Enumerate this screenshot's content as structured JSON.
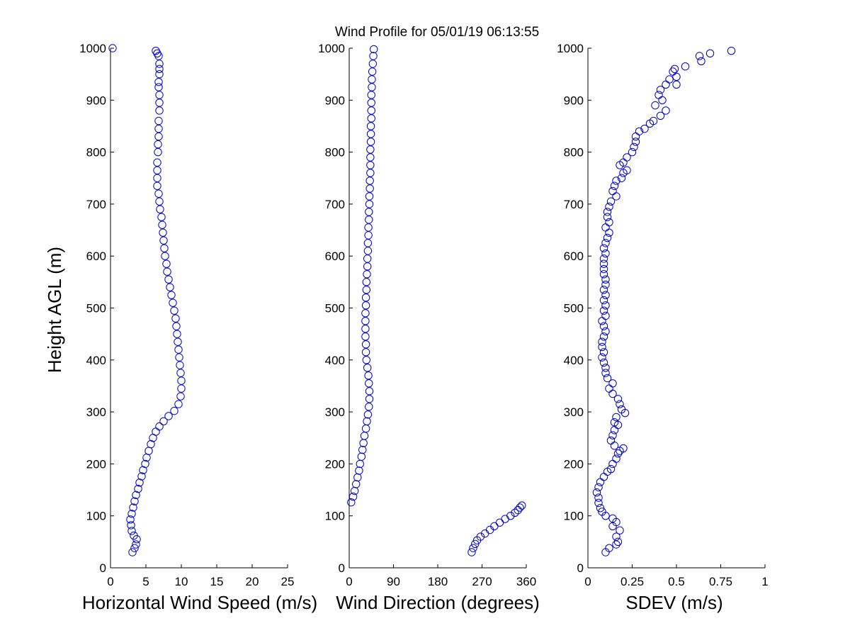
{
  "title": "Wind Profile for  05/01/19 06:13:55",
  "ylabel": "Height AGL (m)",
  "colors": {
    "marker": "#0000cc",
    "axis": "#000000",
    "background": "#ffffff"
  },
  "chart_data": [
    {
      "type": "scatter",
      "xlabel": "Horizontal Wind Speed (m/s)",
      "ylabel": "Height AGL (m)",
      "xlim": [
        0,
        25
      ],
      "ylim": [
        0,
        1000
      ],
      "xticks": [
        "0",
        "5",
        "10",
        "15",
        "20",
        "25"
      ],
      "yticks": [
        "0",
        "100",
        "200",
        "300",
        "400",
        "500",
        "600",
        "700",
        "800",
        "900",
        "1000"
      ],
      "profile_series": [
        [
          6.4,
          995
        ],
        [
          6.6,
          990
        ],
        [
          6.8,
          985
        ],
        [
          6.9,
          970
        ],
        [
          6.9,
          960
        ],
        [
          6.9,
          950
        ],
        [
          6.8,
          935
        ],
        [
          6.8,
          925
        ],
        [
          6.9,
          910
        ],
        [
          6.9,
          895
        ],
        [
          6.9,
          880
        ],
        [
          6.8,
          860
        ],
        [
          6.8,
          845
        ],
        [
          6.8,
          830
        ],
        [
          6.7,
          815
        ],
        [
          6.7,
          800
        ],
        [
          6.6,
          780
        ],
        [
          6.6,
          765
        ],
        [
          6.6,
          750
        ],
        [
          6.6,
          735
        ],
        [
          6.8,
          720
        ],
        [
          6.9,
          705
        ],
        [
          7.0,
          690
        ],
        [
          7.2,
          675
        ],
        [
          7.3,
          660
        ],
        [
          7.4,
          645
        ],
        [
          7.5,
          630
        ],
        [
          7.6,
          615
        ],
        [
          7.7,
          600
        ],
        [
          7.9,
          585
        ],
        [
          8.0,
          570
        ],
        [
          8.2,
          555
        ],
        [
          8.4,
          540
        ],
        [
          8.6,
          525
        ],
        [
          8.8,
          510
        ],
        [
          9.0,
          495
        ],
        [
          9.2,
          480
        ],
        [
          9.3,
          465
        ],
        [
          9.4,
          450
        ],
        [
          9.5,
          435
        ],
        [
          9.6,
          420
        ],
        [
          9.7,
          405
        ],
        [
          9.8,
          390
        ],
        [
          9.9,
          375
        ],
        [
          10.0,
          360
        ],
        [
          10.0,
          345
        ],
        [
          9.9,
          330
        ],
        [
          9.6,
          315
        ],
        [
          9.0,
          302
        ],
        [
          8.2,
          292
        ],
        [
          7.5,
          282
        ],
        [
          6.9,
          272
        ],
        [
          6.4,
          262
        ],
        [
          6.0,
          250
        ],
        [
          5.7,
          238
        ],
        [
          5.4,
          225
        ],
        [
          5.1,
          212
        ],
        [
          4.9,
          200
        ],
        [
          4.6,
          188
        ],
        [
          4.4,
          176
        ],
        [
          4.1,
          164
        ],
        [
          3.9,
          152
        ],
        [
          3.6,
          140
        ],
        [
          3.4,
          128
        ],
        [
          3.2,
          116
        ],
        [
          3.0,
          104
        ],
        [
          2.8,
          93
        ],
        [
          2.9,
          82
        ],
        [
          3.0,
          71
        ],
        [
          3.3,
          62
        ],
        [
          3.7,
          55
        ],
        [
          3.6,
          45
        ],
        [
          3.4,
          38
        ],
        [
          3.1,
          30
        ]
      ],
      "outliers": [
        [
          0.3,
          1000
        ]
      ]
    },
    {
      "type": "scatter",
      "xlabel": "Wind Direction (degrees)",
      "ylabel": "",
      "xlim": [
        0,
        360
      ],
      "ylim": [
        0,
        1000
      ],
      "xticks": [
        "0",
        "90",
        "180",
        "270",
        "360"
      ],
      "yticks": [
        "0",
        "100",
        "200",
        "300",
        "400",
        "500",
        "600",
        "700",
        "800",
        "900",
        "1000"
      ],
      "profile_series": [
        [
          50,
          998
        ],
        [
          49,
          985
        ],
        [
          48,
          970
        ],
        [
          47,
          955
        ],
        [
          46,
          940
        ],
        [
          46,
          925
        ],
        [
          45,
          910
        ],
        [
          45,
          895
        ],
        [
          45,
          880
        ],
        [
          45,
          865
        ],
        [
          44,
          850
        ],
        [
          44,
          835
        ],
        [
          44,
          820
        ],
        [
          43,
          805
        ],
        [
          43,
          790
        ],
        [
          43,
          775
        ],
        [
          43,
          760
        ],
        [
          42,
          745
        ],
        [
          42,
          730
        ],
        [
          41,
          715
        ],
        [
          41,
          700
        ],
        [
          40,
          685
        ],
        [
          40,
          670
        ],
        [
          39,
          655
        ],
        [
          39,
          640
        ],
        [
          38,
          625
        ],
        [
          38,
          610
        ],
        [
          37,
          595
        ],
        [
          37,
          580
        ],
        [
          36,
          565
        ],
        [
          35,
          550
        ],
        [
          35,
          535
        ],
        [
          34,
          520
        ],
        [
          34,
          505
        ],
        [
          33,
          490
        ],
        [
          33,
          475
        ],
        [
          33,
          460
        ],
        [
          33,
          445
        ],
        [
          34,
          430
        ],
        [
          34,
          415
        ],
        [
          35,
          400
        ],
        [
          37,
          385
        ],
        [
          39,
          370
        ],
        [
          40,
          355
        ],
        [
          41,
          340
        ],
        [
          41,
          325
        ],
        [
          40,
          310
        ],
        [
          38,
          295
        ],
        [
          36,
          282
        ],
        [
          34,
          268
        ],
        [
          31,
          254
        ],
        [
          29,
          240
        ],
        [
          27,
          227
        ],
        [
          25,
          214
        ],
        [
          22,
          200
        ],
        [
          20,
          187
        ],
        [
          17,
          174
        ],
        [
          14,
          161
        ],
        [
          11,
          148
        ],
        [
          8,
          137
        ],
        [
          4,
          126
        ]
      ],
      "wrapped_series": [
        [
          249,
          30
        ],
        [
          252,
          38
        ],
        [
          256,
          46
        ],
        [
          260,
          53
        ],
        [
          267,
          60
        ],
        [
          276,
          66
        ],
        [
          286,
          73
        ],
        [
          295,
          80
        ],
        [
          306,
          87
        ],
        [
          317,
          94
        ],
        [
          328,
          100
        ],
        [
          337,
          106
        ],
        [
          343,
          111
        ],
        [
          347,
          116
        ],
        [
          351,
          120
        ]
      ]
    },
    {
      "type": "scatter",
      "xlabel": "SDEV  (m/s)",
      "ylabel": "",
      "xlim": [
        0,
        1
      ],
      "ylim": [
        0,
        1000
      ],
      "xticks": [
        "0",
        "0.25",
        "0.5",
        "0.75",
        "1"
      ],
      "yticks": [
        "0",
        "100",
        "200",
        "300",
        "400",
        "500",
        "600",
        "700",
        "800",
        "900",
        "1000"
      ],
      "profile_series": [
        [
          0.81,
          995
        ],
        [
          0.69,
          990
        ],
        [
          0.63,
          985
        ],
        [
          0.64,
          975
        ],
        [
          0.55,
          965
        ],
        [
          0.49,
          960
        ],
        [
          0.48,
          955
        ],
        [
          0.5,
          945
        ],
        [
          0.46,
          940
        ],
        [
          0.44,
          930
        ],
        [
          0.5,
          930
        ],
        [
          0.41,
          920
        ],
        [
          0.4,
          910
        ],
        [
          0.42,
          900
        ],
        [
          0.38,
          890
        ],
        [
          0.44,
          880
        ],
        [
          0.41,
          870
        ],
        [
          0.37,
          860
        ],
        [
          0.35,
          855
        ],
        [
          0.32,
          845
        ],
        [
          0.29,
          840
        ],
        [
          0.27,
          830
        ],
        [
          0.27,
          820
        ],
        [
          0.26,
          810
        ],
        [
          0.25,
          800
        ],
        [
          0.22,
          790
        ],
        [
          0.2,
          780
        ],
        [
          0.18,
          775
        ],
        [
          0.22,
          765
        ],
        [
          0.2,
          760
        ],
        [
          0.19,
          750
        ],
        [
          0.16,
          745
        ],
        [
          0.15,
          735
        ],
        [
          0.14,
          725
        ],
        [
          0.16,
          715
        ],
        [
          0.13,
          705
        ],
        [
          0.12,
          695
        ],
        [
          0.11,
          685
        ],
        [
          0.11,
          675
        ],
        [
          0.12,
          665
        ],
        [
          0.1,
          655
        ],
        [
          0.12,
          645
        ],
        [
          0.11,
          635
        ],
        [
          0.1,
          625
        ],
        [
          0.09,
          615
        ],
        [
          0.1,
          605
        ],
        [
          0.09,
          595
        ],
        [
          0.09,
          585
        ],
        [
          0.09,
          575
        ],
        [
          0.09,
          565
        ],
        [
          0.1,
          555
        ],
        [
          0.1,
          545
        ],
        [
          0.09,
          535
        ],
        [
          0.1,
          525
        ],
        [
          0.09,
          515
        ],
        [
          0.1,
          505
        ],
        [
          0.09,
          495
        ],
        [
          0.1,
          485
        ],
        [
          0.08,
          475
        ],
        [
          0.09,
          465
        ],
        [
          0.1,
          455
        ],
        [
          0.09,
          445
        ],
        [
          0.08,
          435
        ],
        [
          0.08,
          425
        ],
        [
          0.09,
          415
        ],
        [
          0.08,
          405
        ],
        [
          0.09,
          395
        ],
        [
          0.1,
          385
        ],
        [
          0.1,
          375
        ],
        [
          0.11,
          365
        ],
        [
          0.14,
          355
        ],
        [
          0.12,
          345
        ],
        [
          0.14,
          335
        ],
        [
          0.17,
          325
        ],
        [
          0.18,
          315
        ],
        [
          0.19,
          305
        ],
        [
          0.21,
          298
        ],
        [
          0.16,
          290
        ],
        [
          0.15,
          280
        ],
        [
          0.17,
          275
        ],
        [
          0.15,
          265
        ],
        [
          0.14,
          255
        ],
        [
          0.13,
          245
        ],
        [
          0.15,
          235
        ],
        [
          0.18,
          225
        ],
        [
          0.2,
          230
        ],
        [
          0.17,
          220
        ],
        [
          0.16,
          210
        ],
        [
          0.14,
          200
        ],
        [
          0.13,
          190
        ],
        [
          0.11,
          185
        ],
        [
          0.09,
          175
        ],
        [
          0.07,
          165
        ],
        [
          0.06,
          155
        ],
        [
          0.05,
          145
        ],
        [
          0.06,
          135
        ],
        [
          0.06,
          125
        ],
        [
          0.07,
          115
        ],
        [
          0.08,
          108
        ],
        [
          0.1,
          100
        ],
        [
          0.14,
          95
        ],
        [
          0.16,
          88
        ],
        [
          0.14,
          80
        ],
        [
          0.18,
          72
        ],
        [
          0.16,
          60
        ],
        [
          0.17,
          50
        ],
        [
          0.16,
          45
        ],
        [
          0.12,
          38
        ],
        [
          0.1,
          30
        ]
      ]
    }
  ]
}
